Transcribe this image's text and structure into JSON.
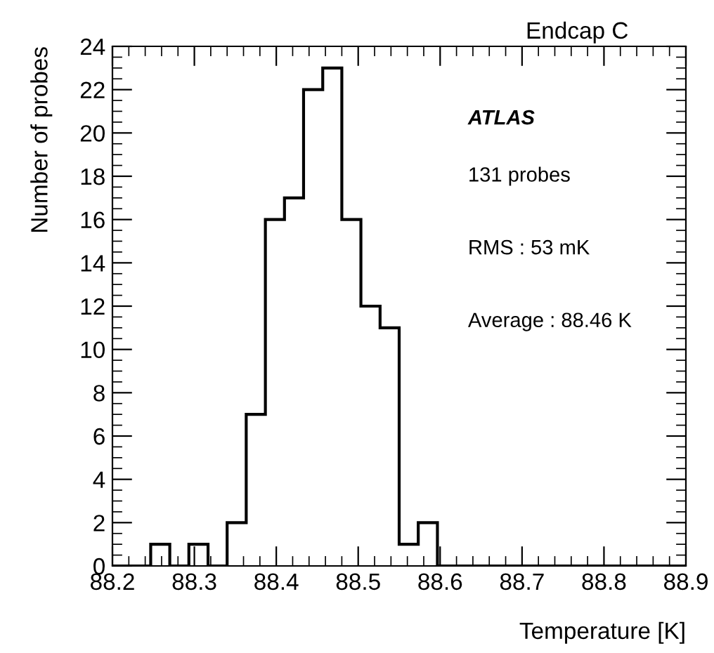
{
  "chart_data": {
    "type": "histogram",
    "title": "Endcap C",
    "xlabel": "Temperature [K]",
    "ylabel": "Number of probes",
    "bins": [
      88.2,
      88.2233,
      88.2467,
      88.27,
      88.2933,
      88.3167,
      88.34,
      88.3633,
      88.3867,
      88.41,
      88.4333,
      88.4567,
      88.48,
      88.5033,
      88.5267,
      88.55,
      88.5733,
      88.5967,
      88.62,
      88.6433,
      88.6667,
      88.69,
      88.7133,
      88.7367,
      88.76,
      88.7833,
      88.8067,
      88.83,
      88.8533,
      88.8767,
      88.9
    ],
    "values": [
      0,
      0,
      1,
      0,
      1,
      0,
      2,
      7,
      16,
      17,
      22,
      23,
      16,
      12,
      11,
      1,
      2,
      0,
      0,
      0,
      0,
      0,
      0,
      0,
      0,
      0,
      0,
      0,
      0,
      0
    ],
    "color": "#000000",
    "xlim": [
      88.2,
      88.9
    ],
    "xticks": [
      88.2,
      88.3,
      88.4,
      88.5,
      88.6,
      88.7,
      88.8,
      88.9
    ],
    "ylim": [
      0,
      24
    ],
    "yticks": [
      0,
      2,
      4,
      6,
      8,
      10,
      12,
      14,
      16,
      18,
      20,
      22,
      24
    ],
    "grid": false,
    "legend": false,
    "annotations": [
      "ATLAS",
      "131 probes",
      "RMS : 53 mK",
      "Average : 88.46 K"
    ]
  }
}
